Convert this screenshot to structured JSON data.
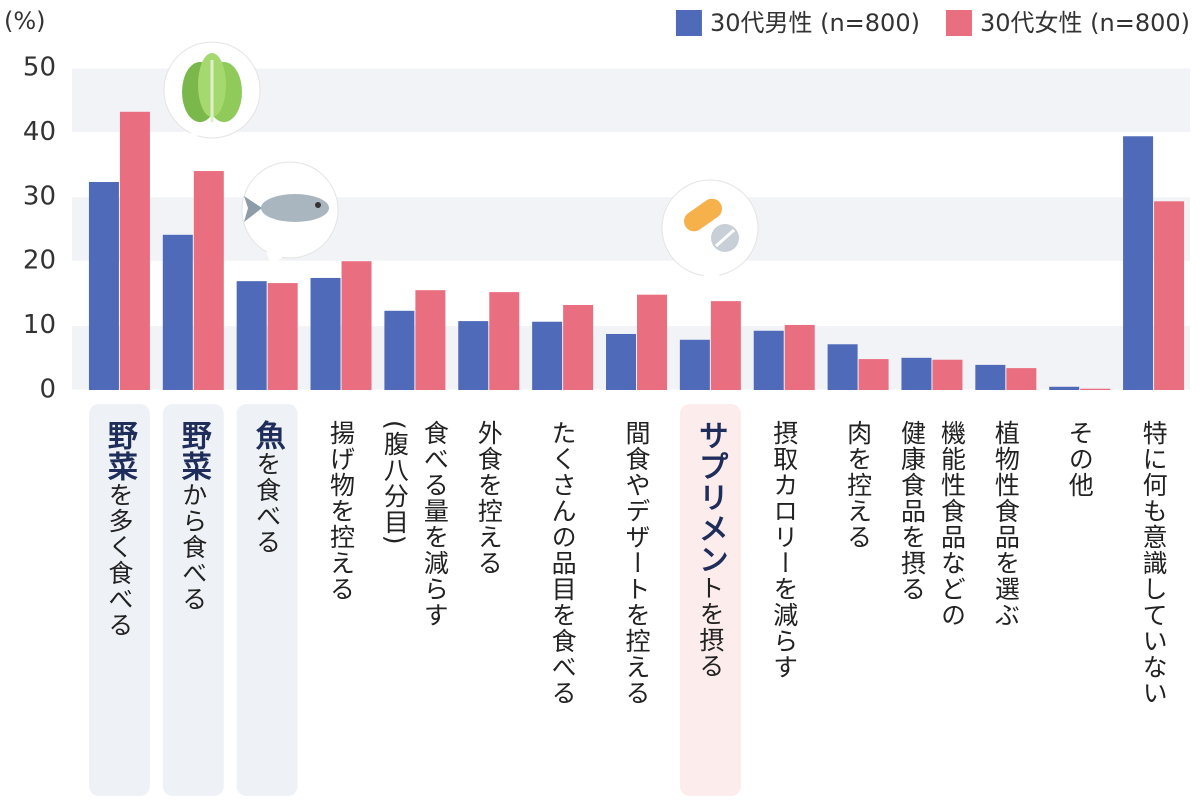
{
  "chart_data": {
    "type": "bar",
    "y_unit_label": "(%)",
    "categories": [
      "野菜を多く食べる",
      "野菜から食べる",
      "魚を食べる",
      "揚げ物を控える",
      "食べる量を減らす\n(腹八分目)",
      "外食を控える",
      "たくさんの品目を食べる",
      "間食やデザートを控える",
      "サプリメントを摂る",
      "摂取カロリーを減らす",
      "肉を控える",
      "機能性食品などの\n健康食品を摂る",
      "植物性食品を選ぶ",
      "その他",
      "特に何も意識していない"
    ],
    "series": [
      {
        "name": "30代男性 (n=800)",
        "color": "#4f6ab8",
        "values": [
          32.3,
          24.1,
          16.9,
          17.4,
          12.3,
          10.7,
          10.6,
          8.7,
          7.8,
          9.2,
          7.1,
          5.0,
          3.9,
          0.5,
          39.4
        ]
      },
      {
        "name": "30代女性 (n=800)",
        "color": "#e96f80",
        "values": [
          43.2,
          34.0,
          16.6,
          20.0,
          15.5,
          15.2,
          13.2,
          14.8,
          13.8,
          10.1,
          4.8,
          4.7,
          3.4,
          0.2,
          29.3
        ]
      }
    ],
    "ylim": [
      0,
      50
    ],
    "yticks": [
      0,
      10,
      20,
      30,
      40,
      50
    ],
    "grid": true,
    "legend": "top-right"
  }
}
